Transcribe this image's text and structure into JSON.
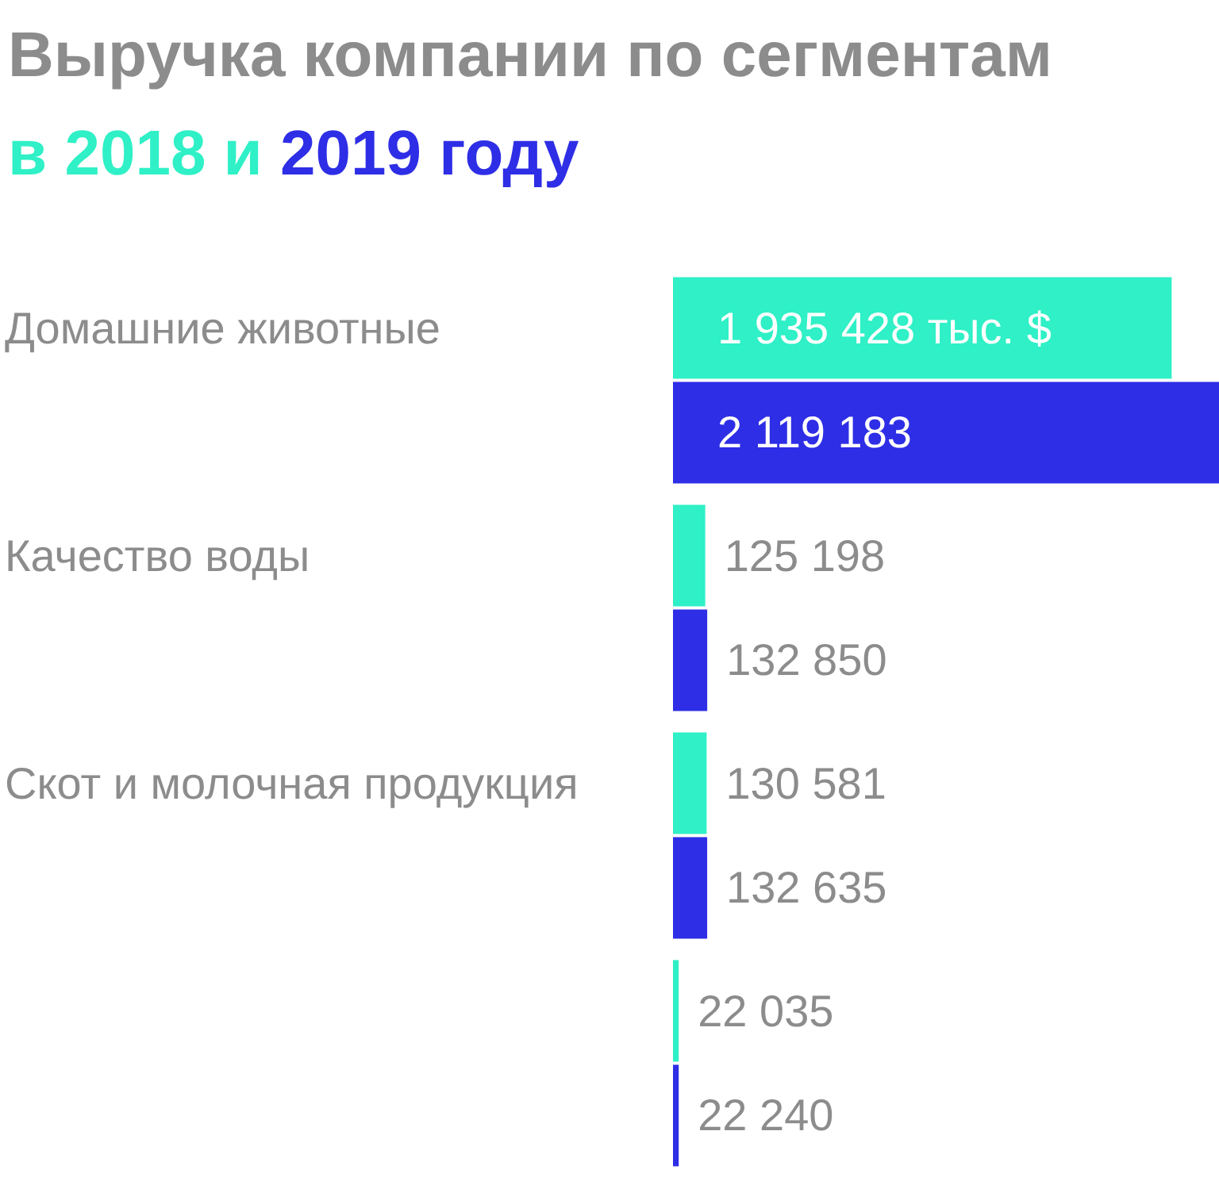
{
  "chart_data": {
    "type": "bar",
    "orientation": "horizontal",
    "title": "Выручка компании по сегментам",
    "subtitle": "в 2018 и 2019 году",
    "categories": [
      "Домашние животные",
      "Качество воды",
      "Скот и молочная продукция",
      null
    ],
    "series": [
      {
        "color": "#2ff0c6",
        "values": [
          1935428,
          125198,
          130581,
          22035
        ],
        "value_labels": [
          "1 935 428 тыс. $",
          "125 198",
          "130 581",
          "22 035"
        ]
      },
      {
        "color": "#2e2ee6",
        "values": [
          2119183,
          132850,
          132635,
          22240
        ],
        "value_labels": [
          "2 119 183",
          "132 850",
          "132 635",
          "22 240"
        ]
      }
    ]
  }
}
